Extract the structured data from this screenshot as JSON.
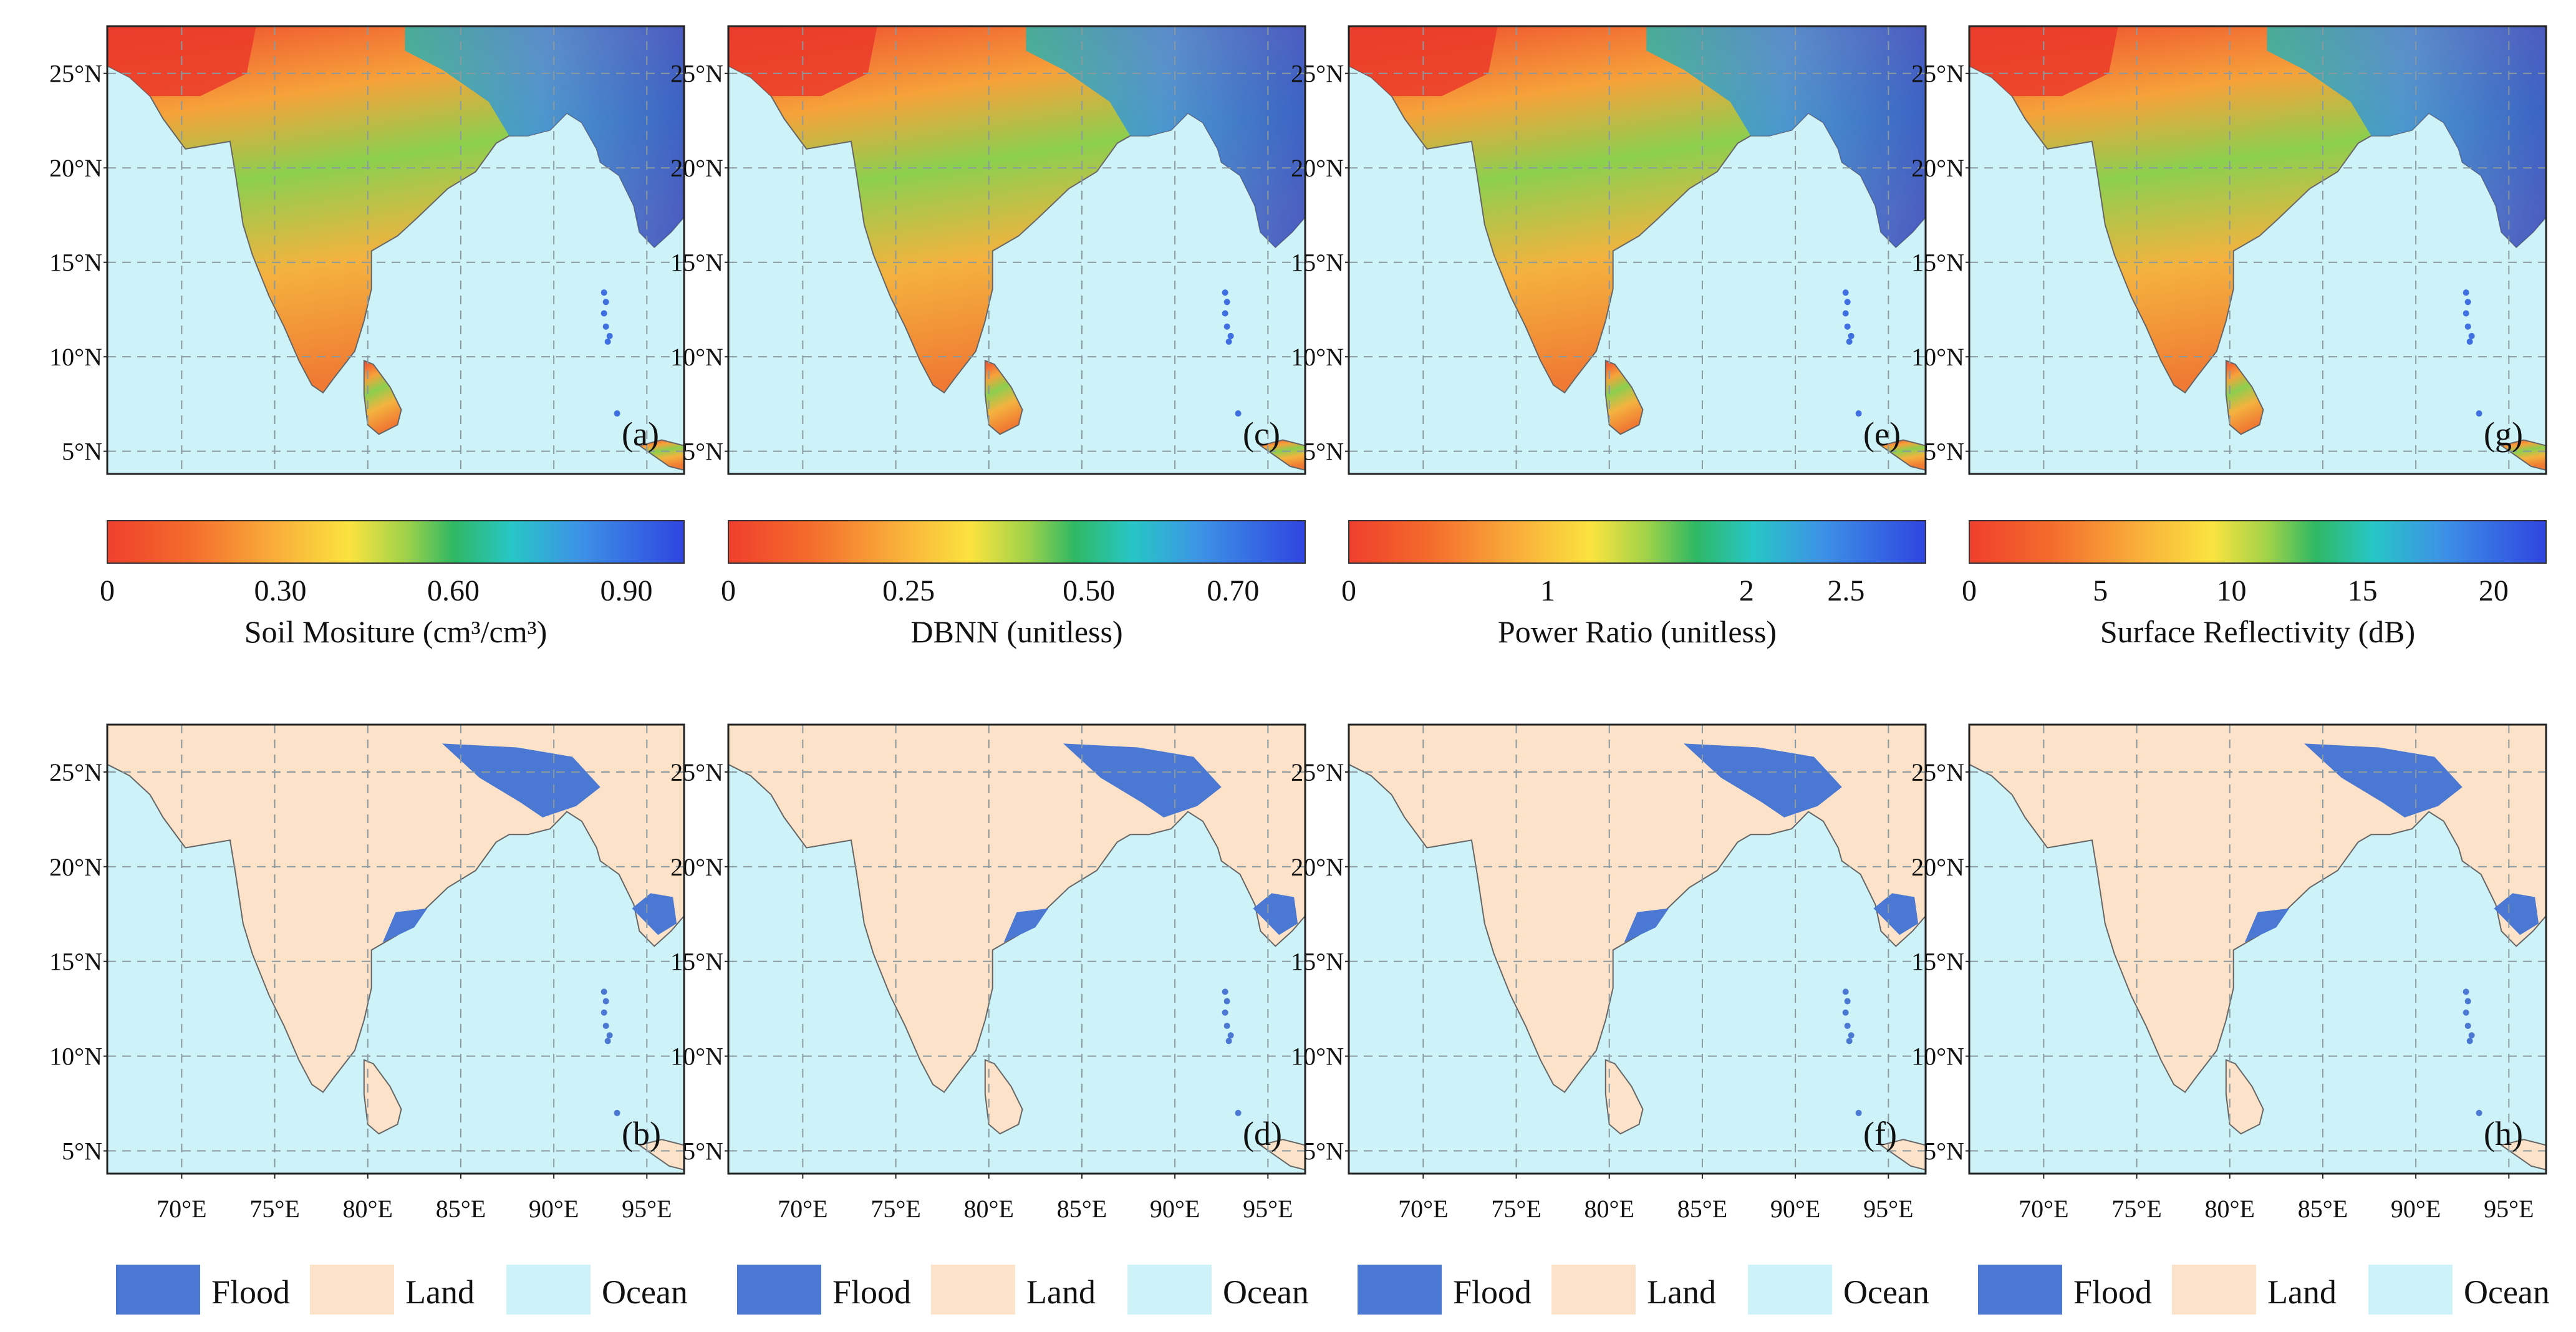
{
  "figure": {
    "map_extent": {
      "lon_min": 66,
      "lon_max": 97,
      "lat_min": 3.8,
      "lat_max": 27.5
    },
    "latitude_ticks": [
      "25°N",
      "20°N",
      "15°N",
      "10°N",
      "5°N"
    ],
    "longitude_ticks": [
      "70°E",
      "75°E",
      "80°E",
      "85°E",
      "90°E",
      "95°E"
    ],
    "top_panels": [
      {
        "label": "(a)",
        "colorbar_title": "Soil Mositure (cm³/cm³)",
        "ticks": [
          "0",
          "0.30",
          "0.60",
          "0.90"
        ],
        "tick_values": [
          0,
          0.3,
          0.6,
          0.9
        ],
        "range": [
          0,
          1.0
        ]
      },
      {
        "label": "(c)",
        "colorbar_title": "DBNN (unitless)",
        "ticks": [
          "0",
          "0.25",
          "0.50",
          "0.70"
        ],
        "tick_values": [
          0,
          0.25,
          0.5,
          0.7
        ],
        "range": [
          0,
          0.8
        ]
      },
      {
        "label": "(e)",
        "colorbar_title": "Power Ratio (unitless)",
        "ticks": [
          "0",
          "1",
          "2",
          "2.5"
        ],
        "tick_values": [
          0,
          1,
          2,
          2.5
        ],
        "range": [
          0,
          2.9
        ]
      },
      {
        "label": "(g)",
        "colorbar_title": "Surface Reflectivity (dB)",
        "ticks": [
          "0",
          "5",
          "10",
          "15",
          "20"
        ],
        "tick_values": [
          0,
          5,
          10,
          15,
          20
        ],
        "range": [
          0,
          22
        ]
      }
    ],
    "bottom_panels": [
      {
        "label": "(b)"
      },
      {
        "label": "(d)"
      },
      {
        "label": "(f)"
      },
      {
        "label": "(h)"
      }
    ],
    "legend": [
      {
        "name": "Flood",
        "color": "#4a78d2"
      },
      {
        "name": "Land",
        "color": "#fbe2c8"
      },
      {
        "name": "Ocean",
        "color": "#cdf2f8"
      }
    ],
    "colors": {
      "ocean": "#cdf2f8",
      "land": "#fbe2c8",
      "flood": "#4a78d2",
      "grid": "#8a9aa0",
      "coast": "#666666"
    }
  }
}
